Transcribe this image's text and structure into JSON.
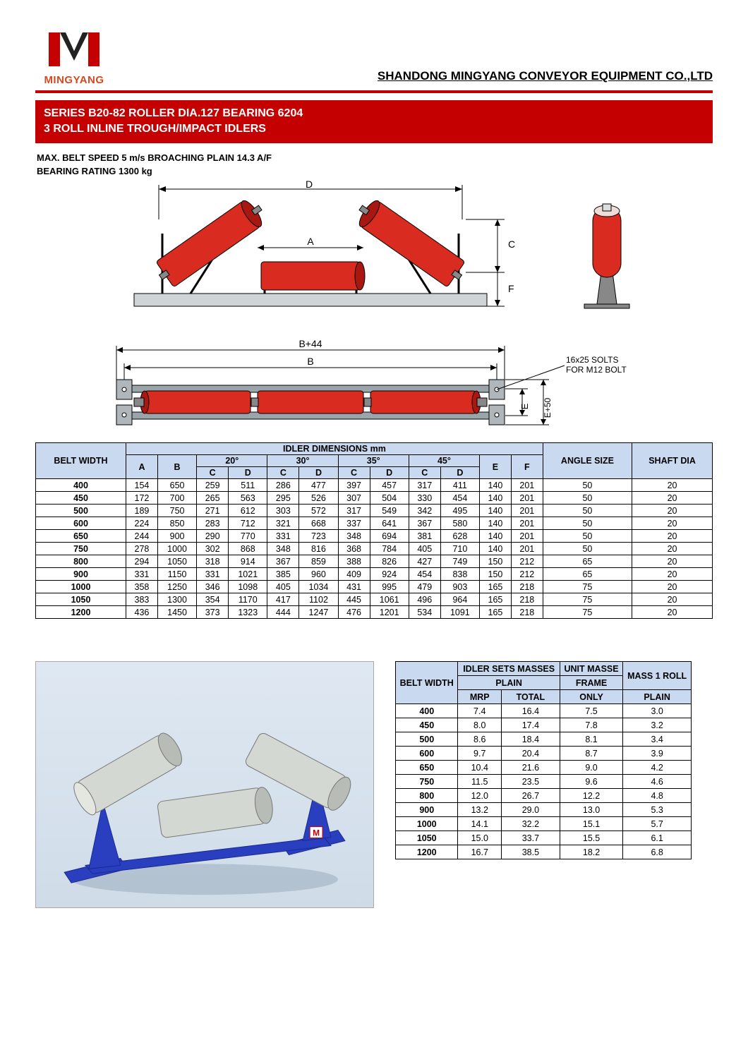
{
  "logo": {
    "brand": "MINGYANG",
    "color_red": "#c40000",
    "color_orange": "#d4491f"
  },
  "company": "SHANDONG MINGYANG CONVEYOR EQUIPMENT CO.,LTD",
  "title_line1": "SERIES B20-82 ROLLER DIA.127 BEARING 6204",
  "title_line2": "3 ROLL INLINE TROUGH/IMPACT IDLERS",
  "spec_line1": "MAX. BELT SPEED 5 m/s BROACHING PLAIN 14.3 A/F",
  "spec_line2": "BEARING RATING 1300 kg",
  "diagram": {
    "labels": {
      "D": "D",
      "A": "A",
      "C": "C",
      "F": "F",
      "B44": "B+44",
      "B": "B",
      "E": "E",
      "E50": "E+50",
      "slot": "16x25 SOLTS\nFOR M12 BOLT"
    },
    "roller_color": "#d92b1f",
    "roller_edge": "#a81810",
    "frame_color": "#9aa5aa",
    "base_color": "#8a9499",
    "blue_frame": "#2a3fbf",
    "silver_roller": "#c9ceca"
  },
  "dim_table": {
    "header_main": "IDLER DIMENSIONS mm",
    "belt_width": "BELT WIDTH",
    "angle_size": "ANGLE SIZE",
    "shaft_dia": "SHAFT DIA",
    "angles": [
      "20°",
      "30°",
      "35°",
      "45°"
    ],
    "cols": [
      "A",
      "B",
      "C",
      "D",
      "C",
      "D",
      "C",
      "D",
      "C",
      "D",
      "E",
      "F"
    ],
    "rows": [
      {
        "bw": "400",
        "v": [
          "154",
          "650",
          "259",
          "511",
          "286",
          "477",
          "397",
          "457",
          "317",
          "411",
          "140",
          "201"
        ],
        "as": "50",
        "sd": "20"
      },
      {
        "bw": "450",
        "v": [
          "172",
          "700",
          "265",
          "563",
          "295",
          "526",
          "307",
          "504",
          "330",
          "454",
          "140",
          "201"
        ],
        "as": "50",
        "sd": "20"
      },
      {
        "bw": "500",
        "v": [
          "189",
          "750",
          "271",
          "612",
          "303",
          "572",
          "317",
          "549",
          "342",
          "495",
          "140",
          "201"
        ],
        "as": "50",
        "sd": "20"
      },
      {
        "bw": "600",
        "v": [
          "224",
          "850",
          "283",
          "712",
          "321",
          "668",
          "337",
          "641",
          "367",
          "580",
          "140",
          "201"
        ],
        "as": "50",
        "sd": "20"
      },
      {
        "bw": "650",
        "v": [
          "244",
          "900",
          "290",
          "770",
          "331",
          "723",
          "348",
          "694",
          "381",
          "628",
          "140",
          "201"
        ],
        "as": "50",
        "sd": "20"
      },
      {
        "bw": "750",
        "v": [
          "278",
          "1000",
          "302",
          "868",
          "348",
          "816",
          "368",
          "784",
          "405",
          "710",
          "140",
          "201"
        ],
        "as": "50",
        "sd": "20"
      },
      {
        "bw": "800",
        "v": [
          "294",
          "1050",
          "318",
          "914",
          "367",
          "859",
          "388",
          "826",
          "427",
          "749",
          "150",
          "212"
        ],
        "as": "65",
        "sd": "20"
      },
      {
        "bw": "900",
        "v": [
          "331",
          "1150",
          "331",
          "1021",
          "385",
          "960",
          "409",
          "924",
          "454",
          "838",
          "150",
          "212"
        ],
        "as": "65",
        "sd": "20"
      },
      {
        "bw": "1000",
        "v": [
          "358",
          "1250",
          "346",
          "1098",
          "405",
          "1034",
          "431",
          "995",
          "479",
          "903",
          "165",
          "218"
        ],
        "as": "75",
        "sd": "20"
      },
      {
        "bw": "1050",
        "v": [
          "383",
          "1300",
          "354",
          "1170",
          "417",
          "1102",
          "445",
          "1061",
          "496",
          "964",
          "165",
          "218"
        ],
        "as": "75",
        "sd": "20"
      },
      {
        "bw": "1200",
        "v": [
          "436",
          "1450",
          "373",
          "1323",
          "444",
          "1247",
          "476",
          "1201",
          "534",
          "1091",
          "165",
          "218"
        ],
        "as": "75",
        "sd": "20"
      }
    ]
  },
  "mass_table": {
    "h_belt": "BELT WIDTH",
    "h_sets": "IDLER SETS MASSES",
    "h_unit": "UNIT MASSE",
    "h_plain": "PLAIN",
    "h_frame": "FRAME",
    "h_mass1": "MASS 1 ROLL",
    "h_mrp": "MRP",
    "h_total": "TOTAL",
    "h_only": "ONLY",
    "h_plain2": "PLAIN",
    "rows": [
      {
        "bw": "400",
        "mrp": "7.4",
        "tot": "16.4",
        "fr": "7.5",
        "pl": "3.0"
      },
      {
        "bw": "450",
        "mrp": "8.0",
        "tot": "17.4",
        "fr": "7.8",
        "pl": "3.2"
      },
      {
        "bw": "500",
        "mrp": "8.6",
        "tot": "18.4",
        "fr": "8.1",
        "pl": "3.4"
      },
      {
        "bw": "600",
        "mrp": "9.7",
        "tot": "20.4",
        "fr": "8.7",
        "pl": "3.9"
      },
      {
        "bw": "650",
        "mrp": "10.4",
        "tot": "21.6",
        "fr": "9.0",
        "pl": "4.2"
      },
      {
        "bw": "750",
        "mrp": "11.5",
        "tot": "23.5",
        "fr": "9.6",
        "pl": "4.6"
      },
      {
        "bw": "800",
        "mrp": "12.0",
        "tot": "26.7",
        "fr": "12.2",
        "pl": "4.8"
      },
      {
        "bw": "900",
        "mrp": "13.2",
        "tot": "29.0",
        "fr": "13.0",
        "pl": "5.3"
      },
      {
        "bw": "1000",
        "mrp": "14.1",
        "tot": "32.2",
        "fr": "15.1",
        "pl": "5.7"
      },
      {
        "bw": "1050",
        "mrp": "15.0",
        "tot": "33.7",
        "fr": "15.5",
        "pl": "6.1"
      },
      {
        "bw": "1200",
        "mrp": "16.7",
        "tot": "38.5",
        "fr": "18.2",
        "pl": "6.8"
      }
    ]
  }
}
